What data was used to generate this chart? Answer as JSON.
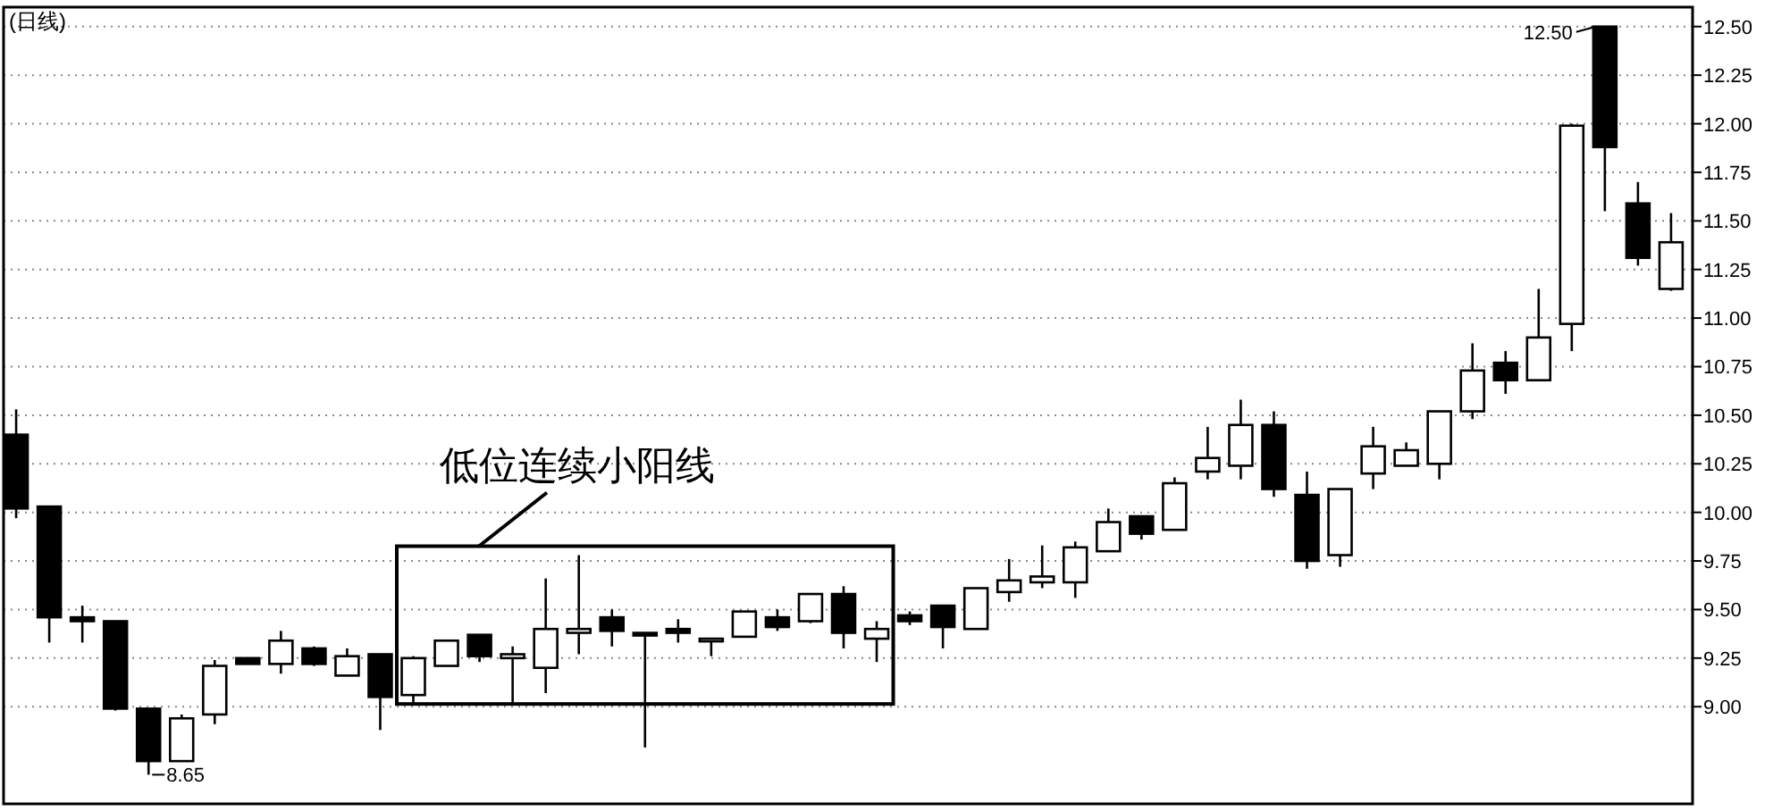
{
  "chart_data": {
    "type": "candlestick",
    "title": "(日线)",
    "categories": [
      null,
      null,
      null,
      null,
      null,
      null,
      null,
      null,
      null,
      null,
      null,
      null,
      null,
      null,
      null,
      null,
      null,
      null,
      null,
      null,
      null,
      null,
      null,
      null,
      null,
      null,
      null,
      null,
      null,
      null,
      null,
      null,
      null,
      null,
      null,
      null,
      null,
      null,
      null,
      null,
      null,
      null,
      null,
      null,
      null,
      null,
      null,
      null,
      null,
      null,
      null
    ],
    "ohlc": [
      [
        10.4,
        10.53,
        9.97,
        10.02
      ],
      [
        10.03,
        10.03,
        9.33,
        9.46
      ],
      [
        9.46,
        9.52,
        9.33,
        9.44
      ],
      [
        9.44,
        9.44,
        8.98,
        8.99
      ],
      [
        8.99,
        8.99,
        8.65,
        8.72
      ],
      [
        8.72,
        8.96,
        8.72,
        8.94
      ],
      [
        8.96,
        9.24,
        8.91,
        9.21
      ],
      [
        9.25,
        9.25,
        9.22,
        9.22
      ],
      [
        9.22,
        9.39,
        9.17,
        9.34
      ],
      [
        9.3,
        9.31,
        9.21,
        9.22
      ],
      [
        9.16,
        9.3,
        9.16,
        9.26
      ],
      [
        9.27,
        9.27,
        8.88,
        9.05
      ],
      [
        9.06,
        9.26,
        9.01,
        9.25
      ],
      [
        9.21,
        9.34,
        9.21,
        9.34
      ],
      [
        9.37,
        9.37,
        9.23,
        9.26
      ],
      [
        9.25,
        9.31,
        9.01,
        9.27
      ],
      [
        9.2,
        9.66,
        9.07,
        9.4
      ],
      [
        9.38,
        9.78,
        9.27,
        9.4
      ],
      [
        9.46,
        9.5,
        9.31,
        9.39
      ],
      [
        9.38,
        9.38,
        8.79,
        9.37
      ],
      [
        9.4,
        9.45,
        9.33,
        9.38
      ],
      [
        9.35,
        9.35,
        9.26,
        9.35
      ],
      [
        9.36,
        9.49,
        9.36,
        9.49
      ],
      [
        9.46,
        9.5,
        9.39,
        9.41
      ],
      [
        9.44,
        9.58,
        9.43,
        9.58
      ],
      [
        9.58,
        9.62,
        9.3,
        9.38
      ],
      [
        9.35,
        9.44,
        9.23,
        9.4
      ],
      [
        9.47,
        9.49,
        9.42,
        9.44
      ],
      [
        9.52,
        9.52,
        9.3,
        9.41
      ],
      [
        9.4,
        9.61,
        9.4,
        9.61
      ],
      [
        9.59,
        9.76,
        9.54,
        9.65
      ],
      [
        9.64,
        9.83,
        9.61,
        9.67
      ],
      [
        9.64,
        9.85,
        9.56,
        9.82
      ],
      [
        9.8,
        10.02,
        9.8,
        9.95
      ],
      [
        9.98,
        9.98,
        9.86,
        9.89
      ],
      [
        9.91,
        10.18,
        9.91,
        10.15
      ],
      [
        10.21,
        10.44,
        10.17,
        10.28
      ],
      [
        10.24,
        10.58,
        10.17,
        10.45
      ],
      [
        10.45,
        10.52,
        10.08,
        10.12
      ],
      [
        10.09,
        10.21,
        9.71,
        9.75
      ],
      [
        9.78,
        10.12,
        9.72,
        10.12
      ],
      [
        10.2,
        10.44,
        10.12,
        10.34
      ],
      [
        10.24,
        10.36,
        10.24,
        10.32
      ],
      [
        10.25,
        10.52,
        10.17,
        10.52
      ],
      [
        10.52,
        10.87,
        10.48,
        10.73
      ],
      [
        10.77,
        10.83,
        10.61,
        10.68
      ],
      [
        10.68,
        11.15,
        10.68,
        10.9
      ],
      [
        10.97,
        12.0,
        10.83,
        11.99
      ],
      [
        12.5,
        12.5,
        11.55,
        11.88
      ],
      [
        11.59,
        11.7,
        11.27,
        11.31
      ],
      [
        11.15,
        11.54,
        11.14,
        11.39
      ]
    ],
    "ylim": [
      8.5,
      12.6
    ],
    "yticks": [
      {
        "value": 9.0,
        "label": "9.00"
      },
      {
        "value": 9.25,
        "label": "9.25"
      },
      {
        "value": 9.5,
        "label": "9.50"
      },
      {
        "value": 9.75,
        "label": "9.75"
      },
      {
        "value": 10.0,
        "label": "10.00"
      },
      {
        "value": 10.25,
        "label": "10.25"
      },
      {
        "value": 10.5,
        "label": "10.50"
      },
      {
        "value": 10.75,
        "label": "10.75"
      },
      {
        "value": 11.0,
        "label": "11.00"
      },
      {
        "value": 11.25,
        "label": "11.25"
      },
      {
        "value": 11.5,
        "label": "11.50"
      },
      {
        "value": 11.75,
        "label": "11.75"
      },
      {
        "value": 12.0,
        "label": "12.00"
      },
      {
        "value": 12.25,
        "label": "12.25"
      },
      {
        "value": 12.5,
        "label": "12.50"
      }
    ],
    "grid": "y",
    "annotations": [
      "12.50",
      "8.65",
      "低位连续小阳线"
    ]
  }
}
